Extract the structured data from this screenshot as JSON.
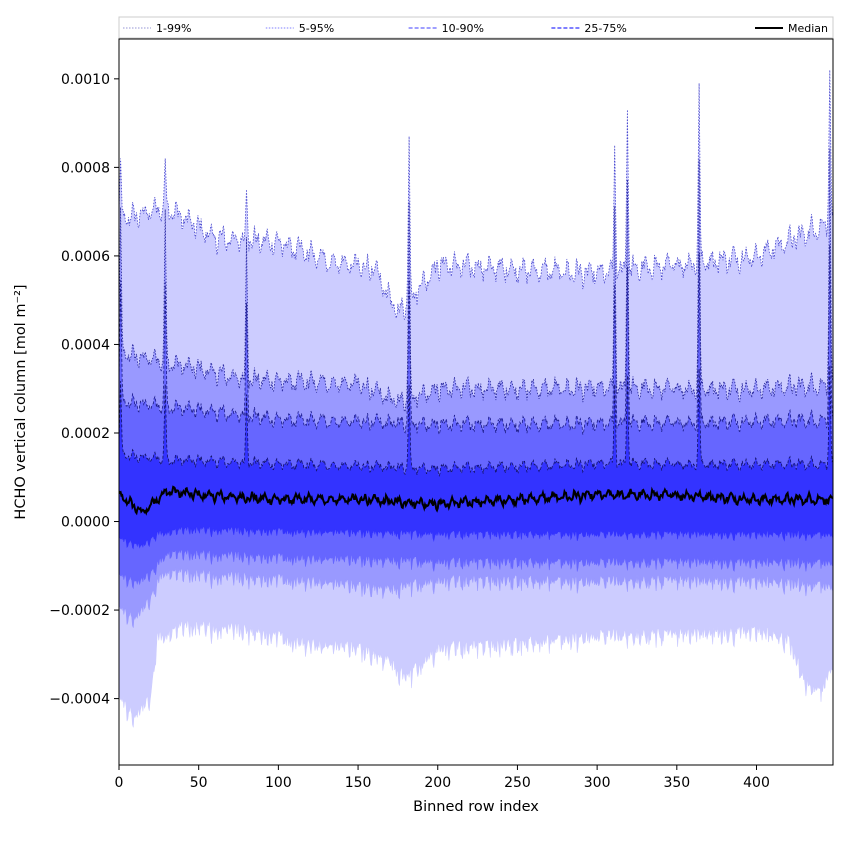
{
  "chart_data": {
    "type": "area",
    "xlabel": "Binned row index",
    "ylabel": "HCHO vertical column [mol m⁻²]",
    "xlim": [
      0,
      448
    ],
    "ylim": [
      -0.00055,
      0.00109
    ],
    "x_ticks": [
      {
        "value": 0,
        "label": "0"
      },
      {
        "value": 50,
        "label": "50"
      },
      {
        "value": 100,
        "label": "100"
      },
      {
        "value": 150,
        "label": "150"
      },
      {
        "value": 200,
        "label": "200"
      },
      {
        "value": 250,
        "label": "250"
      },
      {
        "value": 300,
        "label": "300"
      },
      {
        "value": 350,
        "label": "350"
      },
      {
        "value": 400,
        "label": "400"
      }
    ],
    "y_ticks": [
      {
        "value": -0.0004,
        "label": "−0.0004"
      },
      {
        "value": -0.0002,
        "label": "−0.0002"
      },
      {
        "value": 0.0,
        "label": "0.0000"
      },
      {
        "value": 0.0002,
        "label": "0.0002"
      },
      {
        "value": 0.0004,
        "label": "0.0004"
      },
      {
        "value": 0.0006,
        "label": "0.0006"
      },
      {
        "value": 0.0008,
        "label": "0.0008"
      },
      {
        "value": 0.001,
        "label": "0.0010"
      }
    ],
    "grid": false,
    "legend_placement": "top, spanning the plot width",
    "legend": [
      {
        "label": "1-99%",
        "color": "#ccccff",
        "style": "dotted"
      },
      {
        "label": "5-95%",
        "color": "#9999ff",
        "style": "dotted"
      },
      {
        "label": "10-90%",
        "color": "#6666ff",
        "style": "dashed"
      },
      {
        "label": "25-75%",
        "color": "#3333ff",
        "style": "dashed"
      },
      {
        "label": "Median",
        "color": "#000000",
        "style": "solid"
      }
    ],
    "bands": [
      {
        "name": "1-99%",
        "color": "#ccccff",
        "edge_color": "#4444cc",
        "lower_anchors": [
          [
            0,
            -0.00038
          ],
          [
            10,
            -0.00043
          ],
          [
            20,
            -0.00038
          ],
          [
            24,
            -0.00025
          ],
          [
            40,
            -0.00022
          ],
          [
            80,
            -0.00023
          ],
          [
            120,
            -0.00026
          ],
          [
            150,
            -0.00027
          ],
          [
            170,
            -0.0003
          ],
          [
            180,
            -0.00034
          ],
          [
            200,
            -0.00027
          ],
          [
            250,
            -0.00026
          ],
          [
            300,
            -0.00024
          ],
          [
            350,
            -0.00024
          ],
          [
            400,
            -0.00023
          ],
          [
            420,
            -0.00025
          ],
          [
            430,
            -0.00034
          ],
          [
            440,
            -0.00037
          ],
          [
            448,
            -0.0003
          ]
        ],
        "upper_anchors": [
          [
            0,
            0.00068
          ],
          [
            30,
            0.00071
          ],
          [
            60,
            0.00064
          ],
          [
            100,
            0.00063
          ],
          [
            130,
            0.00059
          ],
          [
            160,
            0.00057
          ],
          [
            175,
            0.00047
          ],
          [
            200,
            0.00058
          ],
          [
            250,
            0.00057
          ],
          [
            300,
            0.00056
          ],
          [
            350,
            0.00058
          ],
          [
            400,
            0.0006
          ],
          [
            430,
            0.00065
          ],
          [
            448,
            0.00068
          ]
        ]
      },
      {
        "name": "5-95%",
        "color": "#9999ff",
        "edge_color": "#222299",
        "lower_anchors": [
          [
            0,
            -0.00018
          ],
          [
            10,
            -0.00021
          ],
          [
            20,
            -0.00016
          ],
          [
            28,
            -0.0001
          ],
          [
            60,
            -0.00011
          ],
          [
            120,
            -0.00012
          ],
          [
            170,
            -0.00014
          ],
          [
            200,
            -0.00012
          ],
          [
            300,
            -0.00012
          ],
          [
            400,
            -0.00012
          ],
          [
            448,
            -0.00013
          ]
        ],
        "upper_anchors": [
          [
            0,
            0.00038
          ],
          [
            30,
            0.00036
          ],
          [
            80,
            0.00032
          ],
          [
            150,
            0.00031
          ],
          [
            175,
            0.00027
          ],
          [
            200,
            0.0003
          ],
          [
            300,
            0.0003
          ],
          [
            400,
            0.0003
          ],
          [
            448,
            0.00031
          ]
        ]
      },
      {
        "name": "10-90%",
        "color": "#6666ff",
        "edge_color": "#1a1a88",
        "lower_anchors": [
          [
            0,
            -0.00011
          ],
          [
            12,
            -0.00013
          ],
          [
            22,
            -0.0001
          ],
          [
            30,
            -6e-05
          ],
          [
            100,
            -7e-05
          ],
          [
            200,
            -8e-05
          ],
          [
            300,
            -8e-05
          ],
          [
            448,
            -8e-05
          ]
        ],
        "upper_anchors": [
          [
            0,
            0.00027
          ],
          [
            30,
            0.00026
          ],
          [
            100,
            0.00023
          ],
          [
            200,
            0.00022
          ],
          [
            300,
            0.00022
          ],
          [
            448,
            0.00023
          ]
        ]
      },
      {
        "name": "25-75%",
        "color": "#3333ff",
        "edge_color": "#111166",
        "lower_anchors": [
          [
            0,
            -3e-05
          ],
          [
            14,
            -5e-05
          ],
          [
            25,
            -2e-05
          ],
          [
            40,
            -1e-05
          ],
          [
            200,
            -2e-05
          ],
          [
            448,
            -2e-05
          ]
        ],
        "upper_anchors": [
          [
            0,
            0.00015
          ],
          [
            30,
            0.00014
          ],
          [
            100,
            0.00013
          ],
          [
            200,
            0.00012
          ],
          [
            300,
            0.00013
          ],
          [
            448,
            0.00013
          ]
        ]
      }
    ],
    "median_anchors": [
      [
        0,
        6e-05
      ],
      [
        15,
        2e-05
      ],
      [
        30,
        7e-05
      ],
      [
        50,
        6e-05
      ],
      [
        100,
        5e-05
      ],
      [
        150,
        5e-05
      ],
      [
        200,
        4e-05
      ],
      [
        250,
        5e-05
      ],
      [
        300,
        6e-05
      ],
      [
        350,
        6e-05
      ],
      [
        400,
        5e-05
      ],
      [
        448,
        5e-05
      ]
    ],
    "spikes": [
      {
        "x": 1,
        "top": 0.00082
      },
      {
        "x": 29,
        "top": 0.00082
      },
      {
        "x": 80,
        "top": 0.00075
      },
      {
        "x": 182,
        "top": 0.00087
      },
      {
        "x": 311,
        "top": 0.00085
      },
      {
        "x": 319,
        "top": 0.00093
      },
      {
        "x": 364,
        "top": 0.00099
      },
      {
        "x": 446,
        "top": 0.00102
      }
    ]
  }
}
